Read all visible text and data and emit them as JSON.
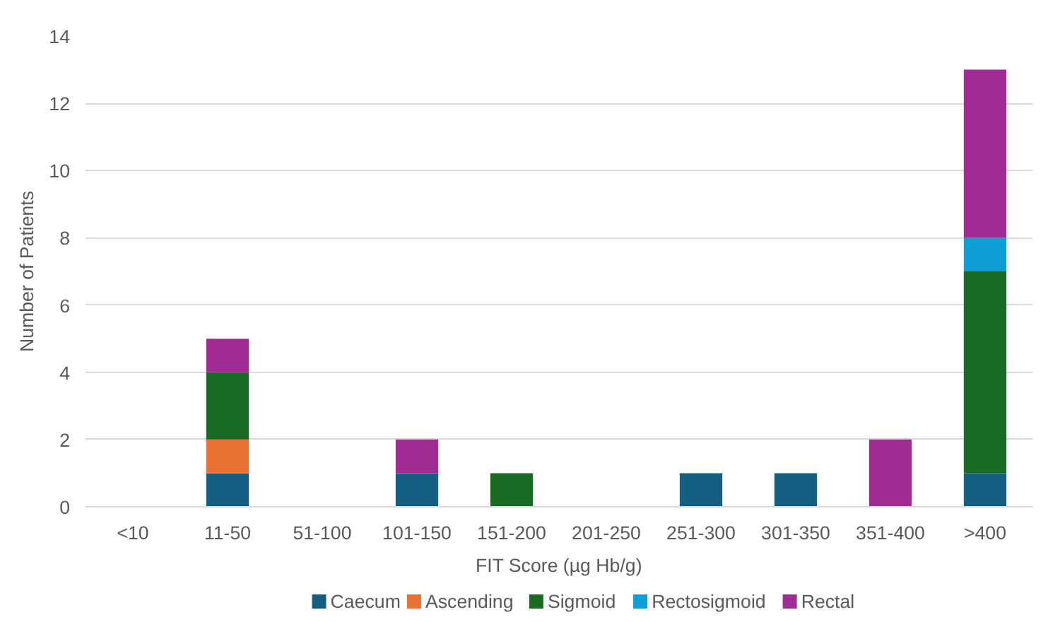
{
  "chart_data": {
    "type": "bar",
    "stacked": true,
    "xlabel": "FIT Score (µg Hb/g)",
    "ylabel": "Number of Patients",
    "categories": [
      "<10",
      "11-50",
      "51-100",
      "101-150",
      "151-200",
      "201-250",
      "251-300",
      "301-350",
      "351-400",
      ">400"
    ],
    "series": [
      {
        "name": "Caecum",
        "color": "#156082",
        "values": [
          0,
          1,
          0,
          1,
          0,
          0,
          1,
          1,
          0,
          1
        ]
      },
      {
        "name": "Ascending",
        "color": "#e97132",
        "values": [
          0,
          1,
          0,
          0,
          0,
          0,
          0,
          0,
          0,
          0
        ]
      },
      {
        "name": "Sigmoid",
        "color": "#196b24",
        "values": [
          0,
          2,
          0,
          0,
          1,
          0,
          0,
          0,
          0,
          6
        ]
      },
      {
        "name": "Rectosigmoid",
        "color": "#0f9ed5",
        "values": [
          0,
          0,
          0,
          0,
          0,
          0,
          0,
          0,
          0,
          1
        ]
      },
      {
        "name": "Rectal",
        "color": "#a02b93",
        "values": [
          0,
          1,
          0,
          1,
          0,
          0,
          0,
          0,
          2,
          5
        ]
      }
    ],
    "ylim": [
      0,
      14
    ],
    "yticks": [
      0,
      2,
      4,
      6,
      8,
      10,
      12,
      14
    ],
    "grid": "y",
    "legend": "bottom"
  }
}
